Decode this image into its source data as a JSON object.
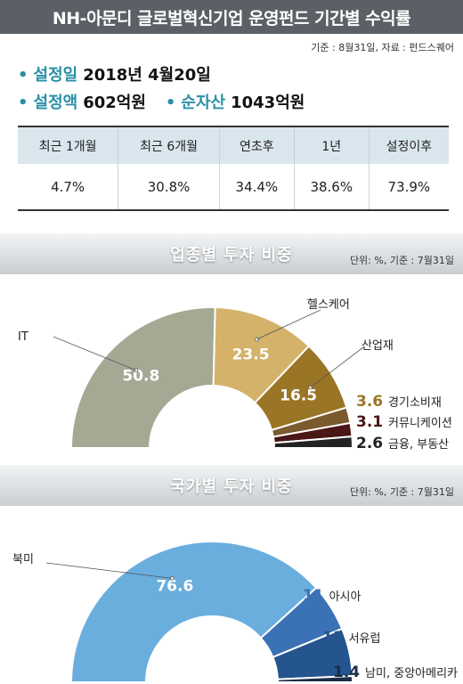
{
  "header": {
    "title": "NH-아문디 글로벌혁신기업 운영펀드 기간별 수익률",
    "source": "기준 : 8월31일, 자료 : 펀드스퀘어"
  },
  "fund_info": {
    "bullet": "•",
    "established_label": "설정일",
    "established_value": "2018년 4월20일",
    "setup_amount_label": "설정액",
    "setup_amount_value": "602억원",
    "net_assets_label": "순자산",
    "net_assets_value": "1043억원"
  },
  "returns_table": {
    "headers": [
      "최근 1개월",
      "최근 6개월",
      "연초후",
      "1년",
      "설정이후"
    ],
    "values": [
      "4.7%",
      "30.8%",
      "34.4%",
      "38.6%",
      "73.9%"
    ]
  },
  "sector_section": {
    "title": "업종별 투자 비중",
    "note": "단위: %, 기준 : 7월31일"
  },
  "country_section": {
    "title": "국가별 투자 비중",
    "note": "단위: %, 기준 : 7월31일"
  },
  "colors": {
    "accent": "#2a8fa8",
    "sector": [
      "#a5a893",
      "#d4b26a",
      "#9a7525",
      "#7a5a2e",
      "#4a1616",
      "#222222"
    ],
    "country": [
      "#6aaede",
      "#3b72b5",
      "#24558e",
      "#1c2e48"
    ]
  },
  "chart_data": [
    {
      "type": "pie",
      "title": "업종별 투자 비중",
      "categories": [
        "IT",
        "헬스케어",
        "산업재",
        "경기소비재",
        "커뮤니케이션",
        "금융, 부동산"
      ],
      "values": [
        50.8,
        23.5,
        16.5,
        3.6,
        3.1,
        2.6
      ],
      "labels": [
        "50.8",
        "23.5",
        "16.5",
        "3.6",
        "3.1",
        "2.6"
      ]
    },
    {
      "type": "pie",
      "title": "국가별 투자 비중",
      "categories": [
        "북미",
        "아시아",
        "서유럽",
        "남미, 중앙아메리카"
      ],
      "values": [
        76.6,
        11,
        11,
        1.4
      ],
      "labels": [
        "76.6",
        "11",
        "11",
        "1.4"
      ]
    }
  ]
}
